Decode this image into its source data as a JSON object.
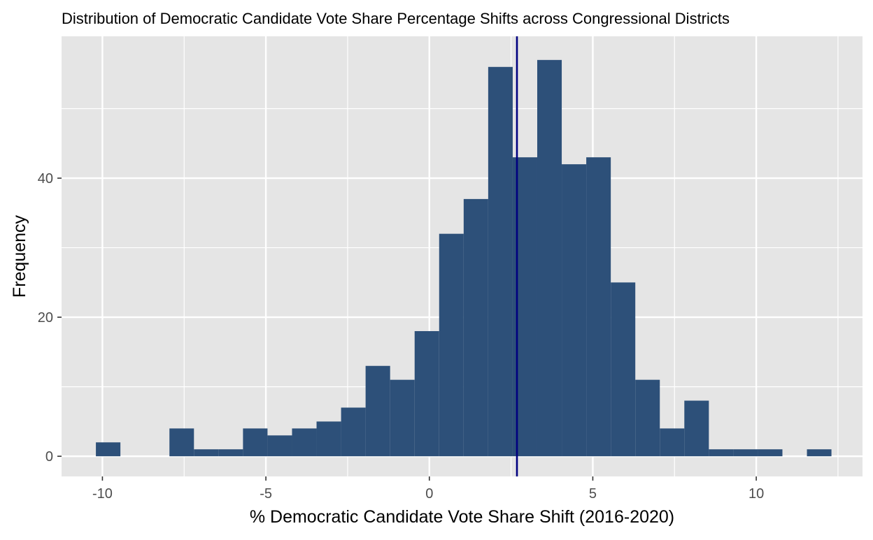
{
  "chart_data": {
    "type": "bar",
    "title": "Distribution of Democratic Candidate Vote Share Percentage Shifts across Congressional Districts",
    "xlabel": "% Democratic Candidate Vote Share Shift (2016-2020)",
    "ylabel": "Frequency",
    "xlim": [
      -11.25,
      13.25
    ],
    "ylim": [
      -2.9,
      60.4
    ],
    "x_ticks": [
      -10,
      -5,
      0,
      5,
      10
    ],
    "x_tick_labels": [
      "-10",
      "-5",
      "0",
      "5",
      "10"
    ],
    "y_ticks": [
      0,
      20,
      40
    ],
    "y_tick_labels": [
      "0",
      "20",
      "40"
    ],
    "bin_width": 0.75,
    "bins": [
      {
        "x0": -10.2,
        "x1": -9.45,
        "count": 2
      },
      {
        "x0": -9.45,
        "x1": -8.7,
        "count": 0
      },
      {
        "x0": -8.7,
        "x1": -7.95,
        "count": 0
      },
      {
        "x0": -7.95,
        "x1": -7.2,
        "count": 4
      },
      {
        "x0": -7.2,
        "x1": -6.45,
        "count": 1
      },
      {
        "x0": -6.45,
        "x1": -5.7,
        "count": 1
      },
      {
        "x0": -5.7,
        "x1": -4.95,
        "count": 4
      },
      {
        "x0": -4.95,
        "x1": -4.2,
        "count": 3
      },
      {
        "x0": -4.2,
        "x1": -3.45,
        "count": 4
      },
      {
        "x0": -3.45,
        "x1": -2.7,
        "count": 5
      },
      {
        "x0": -2.7,
        "x1": -1.95,
        "count": 7
      },
      {
        "x0": -1.95,
        "x1": -1.2,
        "count": 13
      },
      {
        "x0": -1.2,
        "x1": -0.45,
        "count": 11
      },
      {
        "x0": -0.45,
        "x1": 0.3,
        "count": 18
      },
      {
        "x0": 0.3,
        "x1": 1.05,
        "count": 32
      },
      {
        "x0": 1.05,
        "x1": 1.8,
        "count": 37
      },
      {
        "x0": 1.8,
        "x1": 2.55,
        "count": 56
      },
      {
        "x0": 2.55,
        "x1": 3.3,
        "count": 43
      },
      {
        "x0": 3.3,
        "x1": 4.05,
        "count": 57
      },
      {
        "x0": 4.05,
        "x1": 4.8,
        "count": 42
      },
      {
        "x0": 4.8,
        "x1": 5.55,
        "count": 43
      },
      {
        "x0": 5.55,
        "x1": 6.3,
        "count": 25
      },
      {
        "x0": 6.3,
        "x1": 7.05,
        "count": 11
      },
      {
        "x0": 7.05,
        "x1": 7.8,
        "count": 4
      },
      {
        "x0": 7.8,
        "x1": 8.55,
        "count": 8
      },
      {
        "x0": 8.55,
        "x1": 9.3,
        "count": 1
      },
      {
        "x0": 9.3,
        "x1": 10.05,
        "count": 1
      },
      {
        "x0": 10.05,
        "x1": 10.8,
        "count": 1
      },
      {
        "x0": 10.8,
        "x1": 11.55,
        "count": 0
      },
      {
        "x0": 11.55,
        "x1": 12.3,
        "count": 1
      }
    ],
    "reference_line": {
      "x": 2.68,
      "color": "#000080"
    },
    "bar_color": "#2d5079",
    "panel_background": "#e5e5e5",
    "grid": true,
    "grid_color": "#ffffff",
    "tick_label_color": "#4d4d4d"
  }
}
